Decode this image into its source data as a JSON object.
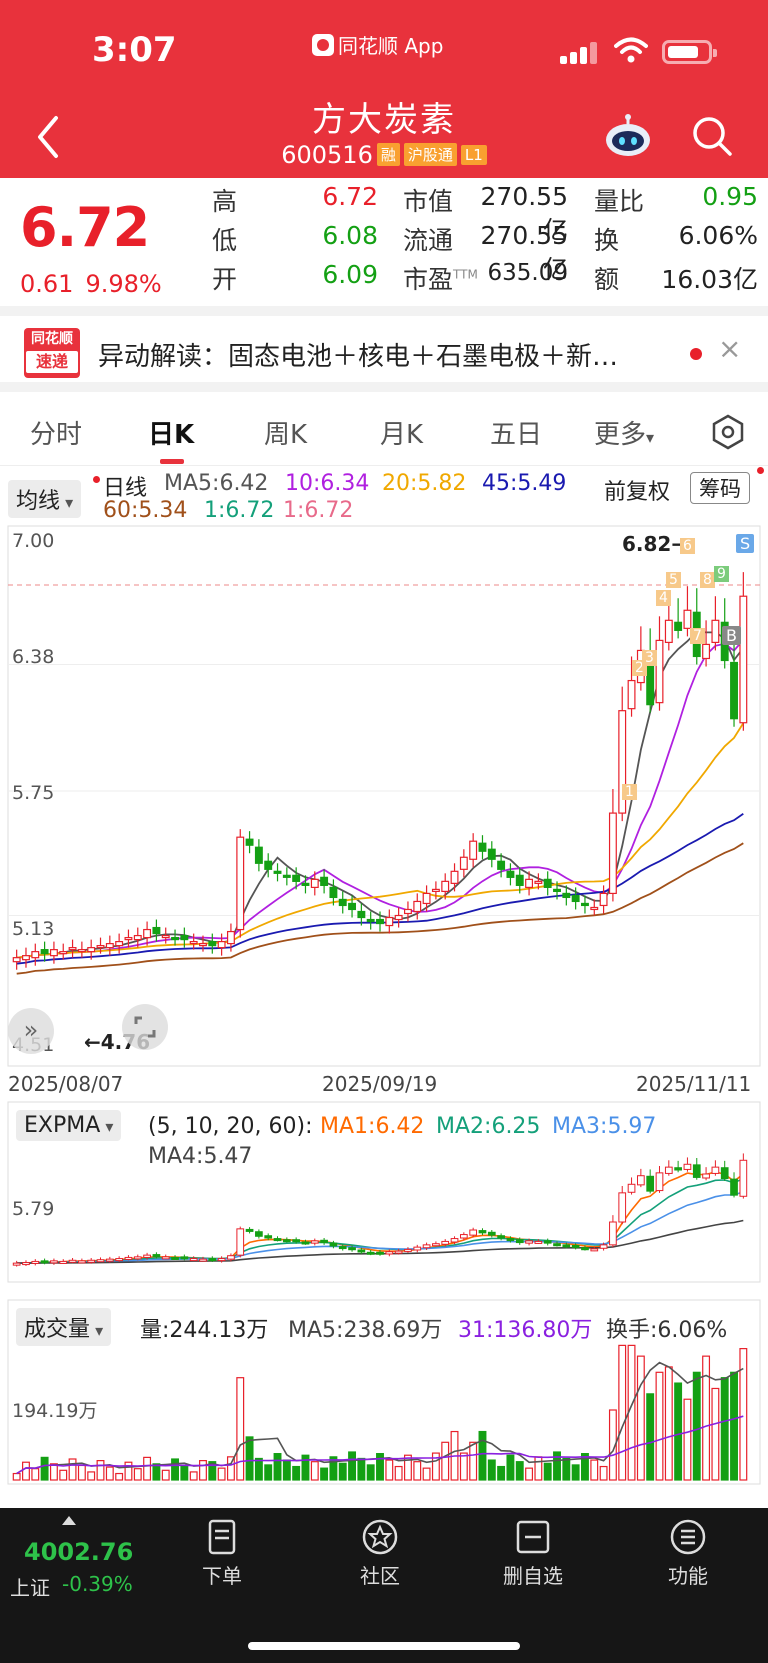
{
  "status_bar": {
    "time": "3:07",
    "app": "同花顺 App"
  },
  "stock": {
    "name": "方大炭素",
    "code": "600516",
    "badges": [
      "融",
      "沪股通",
      "L1"
    ]
  },
  "quote": {
    "price": "6.72",
    "change": "0.61",
    "change_pct": "9.98%",
    "rows": [
      {
        "l1": "高",
        "v1": "6.72",
        "l2": "市值",
        "v2": "270.55亿",
        "l3": "量比",
        "v3": "0.95"
      },
      {
        "l1": "低",
        "v1": "6.08",
        "l2": "流通",
        "v2": "270.55亿",
        "l3": "换",
        "v3": "6.06%"
      },
      {
        "l1": "开",
        "v1": "6.09",
        "l2": "市盈",
        "l2_sup": "TTM",
        "v2": "635.09",
        "l3": "额",
        "v3": "16.03亿"
      }
    ]
  },
  "news": {
    "logo_top": "同花顺",
    "logo_bottom": "速递",
    "text": "异动解读：固态电池＋核电＋石墨电极＋新…",
    "close": "×"
  },
  "tabs": [
    "分时",
    "日K",
    "周K",
    "月K",
    "五日",
    "更多"
  ],
  "active_tab": 1,
  "kline_legend": {
    "selector": "均线",
    "period": "日线",
    "ma5": "MA5:6.42",
    "ma10": "10:6.34",
    "ma20": "20:5.82",
    "ma45": "45:5.49",
    "ma60": "60:5.34",
    "ma1a": "1:6.72",
    "ma1b": "1:6.72",
    "adjust": "前复权",
    "chip": "筹码"
  },
  "kline_axis": {
    "y_labels": [
      "7.00",
      "6.38",
      "5.75",
      "5.13",
      "4.51"
    ],
    "x_labels": [
      "2025/08/07",
      "2025/09/19",
      "2025/11/11"
    ],
    "high_marker": "6.82→",
    "low_marker": "←4.76",
    "signal_s": "S",
    "signal_b": "B",
    "signal_numbers": [
      "1",
      "2",
      "3",
      "4",
      "5",
      "6",
      "7",
      "8",
      "9"
    ]
  },
  "expma": {
    "selector": "EXPMA",
    "params": "(5, 10, 20, 60):",
    "ma1": "MA1:6.42",
    "ma2": "MA2:6.25",
    "ma3": "MA3:5.97",
    "ma4": "MA4:5.47",
    "y_label": "5.79"
  },
  "volume": {
    "selector": "成交量",
    "vol": "量:244.13万",
    "ma5": "MA5:238.69万",
    "ma31": "31:136.80万",
    "turnover": "换手:6.06%",
    "y_label": "194.19万"
  },
  "bottom_nav": {
    "index_value": "4002.76",
    "index_name": "上证",
    "index_change": "-0.39%",
    "items": [
      "下单",
      "社区",
      "删自选",
      "功能"
    ]
  },
  "colors": {
    "brand_red": "#e8323c",
    "up": "#e8202a",
    "down": "#14a014",
    "ma5": "#555555",
    "ma10": "#b020e0",
    "ma20": "#f0a800",
    "ma45": "#1a1ab0",
    "ma60": "#a0501a"
  },
  "chart_data": {
    "type": "candlestick",
    "x_start": "2025/08/07",
    "x_mid": "2025/09/19",
    "x_end": "2025/11/11",
    "ylim": [
      4.51,
      7.0
    ],
    "closes": [
      4.92,
      4.93,
      4.95,
      4.94,
      4.96,
      4.95,
      4.97,
      4.96,
      4.97,
      4.98,
      4.99,
      5.0,
      5.02,
      5.03,
      5.06,
      5.04,
      5.03,
      5.02,
      5.01,
      5.0,
      4.99,
      4.98,
      5.0,
      5.05,
      5.52,
      5.48,
      5.39,
      5.36,
      5.34,
      5.32,
      5.3,
      5.28,
      5.31,
      5.28,
      5.22,
      5.18,
      5.16,
      5.12,
      5.1,
      5.09,
      5.12,
      5.13,
      5.16,
      5.2,
      5.24,
      5.26,
      5.3,
      5.35,
      5.42,
      5.5,
      5.45,
      5.41,
      5.36,
      5.32,
      5.28,
      5.31,
      5.3,
      5.27,
      5.25,
      5.22,
      5.2,
      5.18,
      5.17,
      5.24,
      5.64,
      6.15,
      6.3,
      6.45,
      6.18,
      6.5,
      6.6,
      6.55,
      6.65,
      6.42,
      6.48,
      6.6,
      6.4,
      6.11,
      6.72
    ],
    "ma5_last": 6.42,
    "ma10_last": 6.34,
    "ma20_last": 5.82,
    "ma45_last": 5.49,
    "ma60_last": 5.34,
    "volume_last": 244.13,
    "volume_ma5_last": 238.69,
    "volume_ma31_last": 136.8
  }
}
